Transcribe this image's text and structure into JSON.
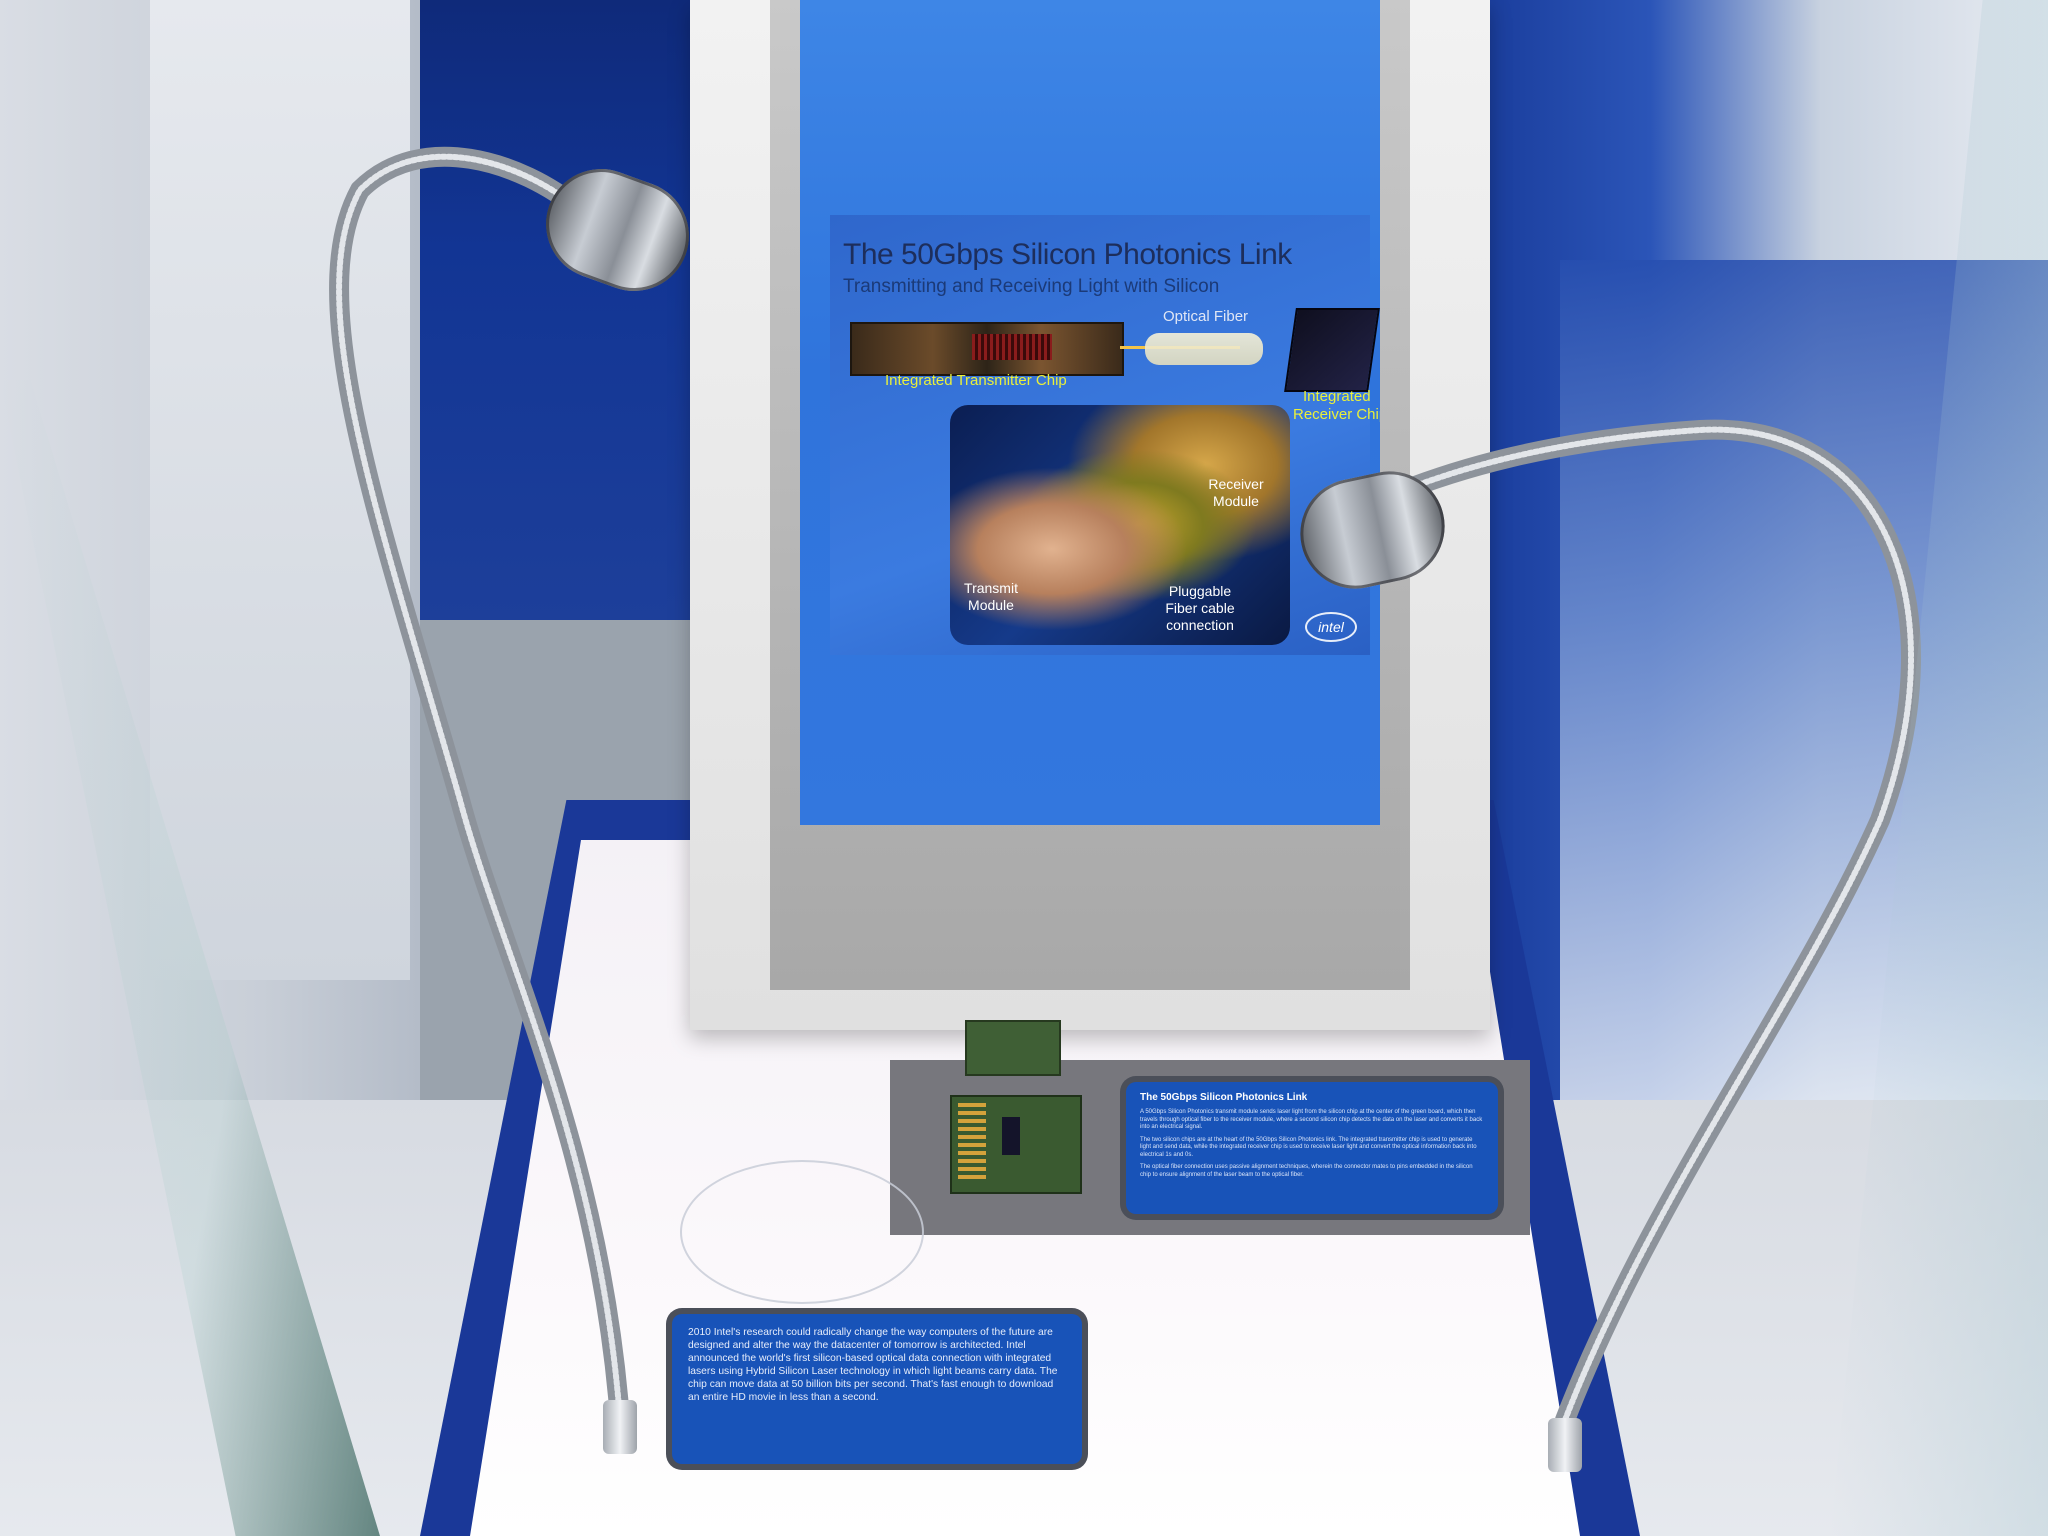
{
  "screen_slide": {
    "title": "The 50Gbps Silicon Photonics Link",
    "subtitle": "Transmitting and Receiving Light with Silicon",
    "labels": {
      "optical_fiber": "Optical Fiber",
      "integrated_transmitter_chip": "Integrated Transmitter Chip",
      "integrated_receiver_chip_line1": "Integrated",
      "integrated_receiver_chip_line2": "Receiver Chip",
      "receiver_module_line1": "Receiver",
      "receiver_module_line2": "Module",
      "transmit_module_line1": "Transmit",
      "transmit_module_line2": "Module",
      "pluggable_line1": "Pluggable",
      "pluggable_line2": "Fiber cable",
      "pluggable_line3": "connection"
    },
    "logo_text": "intel"
  },
  "placard_right": {
    "title": "The 50Gbps Silicon Photonics Link",
    "p1": "A 50Gbps Silicon Photonics transmit module sends laser light from the silicon chip at the center of the green board, which then travels through optical fiber to the receiver module, where a second silicon chip detects the data on the laser and converts it back into an electrical signal.",
    "p2": "The two silicon chips are at the heart of the 50Gbps Silicon Photonics link. The integrated transmitter chip is used to generate light and send data, while the integrated receiver chip is used to receive laser light and convert the optical information back into electrical 1s and 0s.",
    "p3": "The optical fiber connection uses passive alignment techniques, wherein the connector mates to pins embedded in the silicon chip to ensure alignment of the laser beam to the optical fiber."
  },
  "placard_bottom": {
    "text": "2010 Intel's research could radically change the way computers of the future are designed and alter the way the datacenter of tomorrow is architected. Intel announced the world's first silicon-based optical data connection with integrated lasers using Hybrid Silicon Laser technology in which light beams carry data. The chip can move data at 50 billion bits per second. That's fast enough to download an entire HD movie in less than a second."
  },
  "colors": {
    "screen_blue": "#3377de",
    "label_yellow": "#e9f03a",
    "case_blue": "#1a3898",
    "placard_blue": "#1853b8"
  },
  "icons": [
    "gooseneck-lamp-left",
    "gooseneck-lamp-right",
    "intel-logo"
  ]
}
